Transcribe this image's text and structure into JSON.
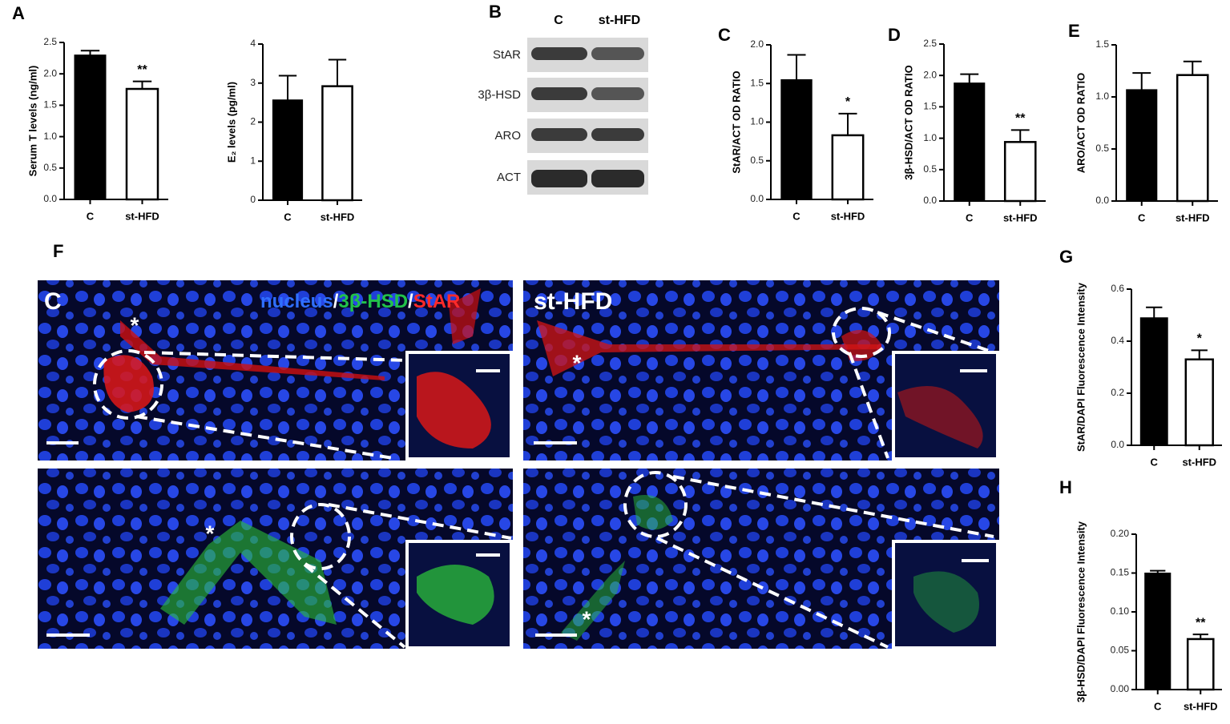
{
  "panels": [
    "A",
    "B",
    "C",
    "D",
    "E",
    "F",
    "G",
    "H"
  ],
  "blot": {
    "columns": [
      "C",
      "st-HFD"
    ],
    "rows": [
      "StAR",
      "3β-HSD",
      "ARO",
      "ACT"
    ]
  },
  "images": {
    "labels": [
      "C",
      "st-HFD"
    ],
    "stain_legend": [
      {
        "text": "nucleus",
        "color": "#2f6fff"
      },
      {
        "text": "/",
        "color": "#ffffff"
      },
      {
        "text": "3β-HSD",
        "color": "#22c24a"
      },
      {
        "text": "/",
        "color": "#ffffff"
      },
      {
        "text": "StAR",
        "color": "#ff2a2a"
      }
    ],
    "markers": [
      "*",
      "*",
      "*",
      "*"
    ]
  },
  "chart_data": [
    {
      "type": "bar",
      "y_label": "Serum T levels (ng/ml)",
      "categories": [
        "C",
        "st-HFD"
      ],
      "values": [
        2.3,
        1.76
      ],
      "errors": [
        0.07,
        0.12
      ],
      "colors": [
        "#000000",
        "#ffffff"
      ],
      "annotations": [
        null,
        "**"
      ],
      "ylim": [
        0,
        2.5
      ],
      "yticks": [
        {
          "value": 0,
          "label": "0.0"
        },
        0.5,
        {
          "value": 1,
          "label": "1.0"
        },
        1.5,
        {
          "value": 2,
          "label": "2.0"
        },
        2.5
      ]
    },
    {
      "type": "bar",
      "y_label": "E₂ levels (pg/ml)",
      "categories": [
        "C",
        "st-HFD"
      ],
      "values": [
        2.57,
        2.92
      ],
      "errors": [
        0.62,
        0.68
      ],
      "colors": [
        "#000000",
        "#ffffff"
      ],
      "annotations": [
        null,
        null
      ],
      "ylim": [
        0,
        4
      ],
      "yticks": [
        0,
        1,
        2,
        3,
        4
      ]
    },
    {
      "type": "bar",
      "y_label": "StAR/ACT OD RATIO",
      "categories": [
        "C",
        "st-HFD"
      ],
      "values": [
        1.55,
        0.83
      ],
      "errors": [
        0.32,
        0.28
      ],
      "colors": [
        "#000000",
        "#ffffff"
      ],
      "annotations": [
        null,
        "*"
      ],
      "ylim": [
        0,
        2
      ],
      "yticks": [
        {
          "value": 0,
          "label": "0.0"
        },
        0.5,
        {
          "value": 1,
          "label": "1.0"
        },
        1.5,
        {
          "value": 2,
          "label": "2.0"
        }
      ]
    },
    {
      "type": "bar",
      "y_label": "3β-HSD/ACT OD RATIO",
      "categories": [
        "C",
        "st-HFD"
      ],
      "values": [
        1.88,
        0.94
      ],
      "errors": [
        0.14,
        0.19
      ],
      "colors": [
        "#000000",
        "#ffffff"
      ],
      "annotations": [
        null,
        "**"
      ],
      "ylim": [
        0,
        2.5
      ],
      "yticks": [
        {
          "value": 0,
          "label": "0.0"
        },
        0.5,
        {
          "value": 1,
          "label": "1.0"
        },
        1.5,
        {
          "value": 2,
          "label": "2.0"
        },
        2.5
      ]
    },
    {
      "type": "bar",
      "y_label": "ARO/ACT OD RATIO",
      "categories": [
        "C",
        "st-HFD"
      ],
      "values": [
        1.07,
        1.21
      ],
      "errors": [
        0.16,
        0.13
      ],
      "colors": [
        "#000000",
        "#ffffff"
      ],
      "annotations": [
        null,
        null
      ],
      "ylim": [
        0,
        1.5
      ],
      "yticks": [
        {
          "value": 0,
          "label": "0.0"
        },
        0.5,
        {
          "value": 1,
          "label": "1.0"
        },
        1.5
      ]
    },
    {
      "type": "bar",
      "y_label": "StAR/DAPI Fluorescence Intensity",
      "categories": [
        "C",
        "st-HFD"
      ],
      "values": [
        0.49,
        0.33
      ],
      "errors": [
        0.04,
        0.035
      ],
      "colors": [
        "#000000",
        "#ffffff"
      ],
      "annotations": [
        null,
        "*"
      ],
      "ylim": [
        0,
        0.6
      ],
      "yticks": [
        {
          "value": 0,
          "label": "0.0"
        },
        0.2,
        0.4,
        0.6
      ]
    },
    {
      "type": "bar",
      "y_label": "3β-HSD/DAPI Fluorescence Intensity",
      "categories": [
        "C",
        "st-HFD"
      ],
      "values": [
        0.15,
        0.065
      ],
      "errors": [
        0.003,
        0.006
      ],
      "colors": [
        "#000000",
        "#ffffff"
      ],
      "annotations": [
        null,
        "**"
      ],
      "ylim": [
        0,
        0.2
      ],
      "yticks": [
        {
          "value": 0,
          "label": "0.00"
        },
        0.05,
        {
          "value": 0.1,
          "label": "0.10"
        },
        0.15,
        {
          "value": 0.2,
          "label": "0.20"
        }
      ]
    }
  ]
}
